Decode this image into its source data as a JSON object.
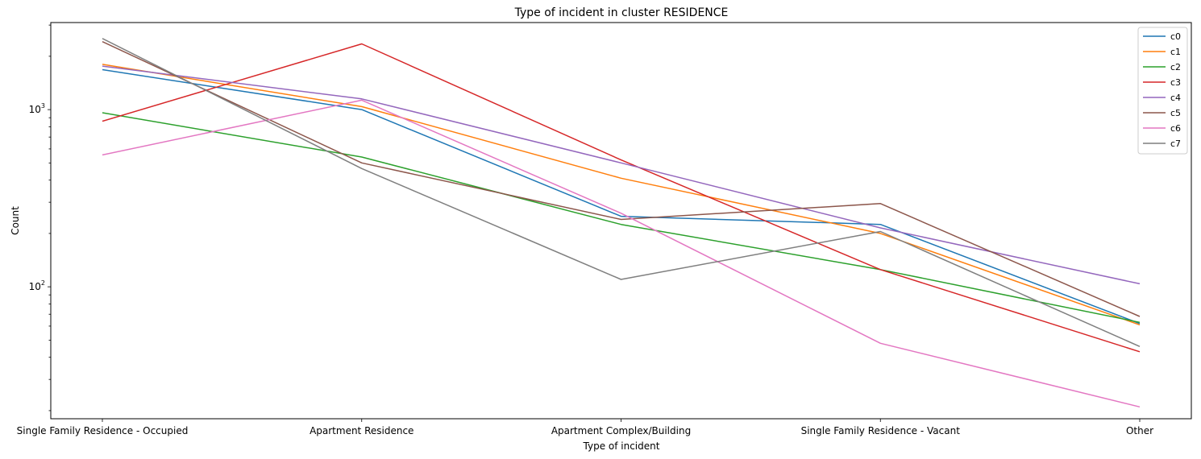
{
  "chart_data": {
    "type": "line",
    "title": "Type of incident in cluster RESIDENCE",
    "xlabel": "Type of incident",
    "ylabel": "Count",
    "yscale": "log",
    "ylim": [
      18,
      3100
    ],
    "y_ticks": [
      {
        "value": 100,
        "base": "10",
        "exp": "2"
      },
      {
        "value": 1000,
        "base": "10",
        "exp": "3"
      }
    ],
    "grid": false,
    "legend_position": "top-right",
    "categories": [
      "Single Family Residence - Occupied",
      "Apartment Residence",
      "Apartment Complex/Building",
      "Single Family Residence - Vacant",
      "Other"
    ],
    "series": [
      {
        "name": "c0",
        "color": "#1f77b4",
        "values": [
          1680,
          1000,
          250,
          225,
          62
        ]
      },
      {
        "name": "c1",
        "color": "#ff7f0e",
        "values": [
          1800,
          1040,
          410,
          200,
          61
        ]
      },
      {
        "name": "c2",
        "color": "#2ca02c",
        "values": [
          960,
          540,
          225,
          125,
          63
        ]
      },
      {
        "name": "c3",
        "color": "#d62728",
        "values": [
          860,
          2350,
          520,
          125,
          43
        ]
      },
      {
        "name": "c4",
        "color": "#9467bd",
        "values": [
          1760,
          1150,
          500,
          215,
          104
        ]
      },
      {
        "name": "c5",
        "color": "#8c564b",
        "values": [
          2420,
          500,
          240,
          295,
          68
        ]
      },
      {
        "name": "c6",
        "color": "#e377c2",
        "values": [
          555,
          1130,
          260,
          48,
          21
        ]
      },
      {
        "name": "c7",
        "color": "#7f7f7f",
        "values": [
          2520,
          465,
          110,
          205,
          46
        ]
      }
    ]
  }
}
